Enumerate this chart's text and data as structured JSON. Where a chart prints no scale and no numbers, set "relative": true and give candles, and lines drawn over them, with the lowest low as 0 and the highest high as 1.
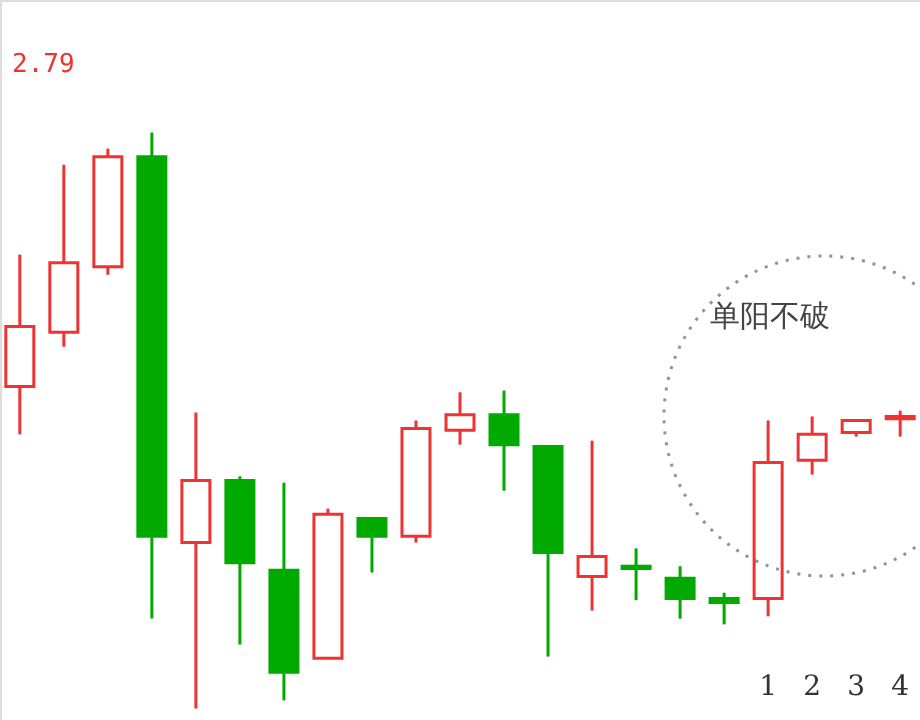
{
  "chart_data": {
    "type": "candlestick",
    "relative": true,
    "tick_labels": "x",
    "categories": [
      null,
      null,
      null,
      null,
      null,
      null,
      null,
      null,
      null,
      null,
      null,
      null,
      null,
      null,
      null,
      null,
      null,
      "1",
      "2",
      "3",
      "4"
    ],
    "ohlc": [
      [
        0.559,
        0.788,
        0.476,
        0.663
      ],
      [
        0.653,
        0.944,
        0.628,
        0.774
      ],
      [
        0.767,
        0.972,
        0.753,
        0.958
      ],
      [
        0.958,
        1.0,
        0.156,
        0.299
      ],
      [
        0.288,
        0.514,
        0.0,
        0.396
      ],
      [
        0.396,
        0.403,
        0.111,
        0.253
      ],
      [
        0.24,
        0.392,
        0.014,
        0.063
      ],
      [
        0.087,
        0.347,
        0.087,
        0.337
      ],
      [
        0.33,
        0.33,
        0.236,
        0.299
      ],
      [
        0.299,
        0.5,
        0.288,
        0.486
      ],
      [
        0.483,
        0.549,
        0.458,
        0.51
      ],
      [
        0.51,
        0.552,
        0.378,
        0.458
      ],
      [
        0.455,
        0.455,
        0.09,
        0.271
      ],
      [
        0.229,
        0.465,
        0.17,
        0.264
      ],
      [
        0.247,
        0.278,
        0.188,
        0.243
      ],
      [
        0.226,
        0.247,
        0.156,
        0.191
      ],
      [
        0.191,
        0.201,
        0.146,
        0.184
      ],
      [
        0.191,
        0.5,
        0.16,
        0.427
      ],
      [
        0.431,
        0.507,
        0.406,
        0.476
      ],
      [
        0.479,
        0.5,
        0.472,
        0.5
      ],
      [
        0.503,
        0.517,
        0.472,
        0.507
      ]
    ],
    "colors": [
      "#ee3333",
      "#ee3333",
      "#ee3333",
      "#00aa00",
      "#ee3333",
      "#00aa00",
      "#00aa00",
      "#ee3333",
      "#00aa00",
      "#ee3333",
      "#ee3333",
      "#00aa00",
      "#00aa00",
      "#ee3333",
      "#00aa00",
      "#00aa00",
      "#00aa00",
      "#ee3333",
      "#ee3333",
      "#ee3333",
      "#ee3333"
    ],
    "annotations": [
      "2.79",
      "单阳不破"
    ]
  }
}
